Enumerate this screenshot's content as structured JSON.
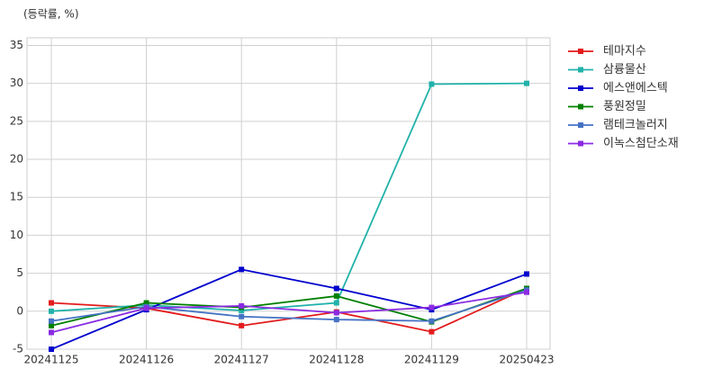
{
  "chart_data": {
    "type": "line",
    "y_label": "(등락률, %)",
    "categories": [
      "20241125",
      "20241126",
      "20241127",
      "20241128",
      "20241129",
      "20250423"
    ],
    "series": [
      {
        "name": "테마지수",
        "color": "#e31a1c",
        "values": [
          1.1,
          0.4,
          -1.9,
          -0.1,
          -2.7,
          3.0
        ]
      },
      {
        "name": "삼륭물산",
        "color": "#20b2aa",
        "values": [
          0.0,
          0.8,
          0.1,
          1.1,
          29.9,
          30.0
        ]
      },
      {
        "name": "에스앤에스텍",
        "color": "#0000cd",
        "values": [
          -5.0,
          0.2,
          5.5,
          3.0,
          0.2,
          4.9
        ]
      },
      {
        "name": "풍원정밀",
        "color": "#008000",
        "values": [
          -1.9,
          1.1,
          0.5,
          2.0,
          -1.4,
          3.0
        ]
      },
      {
        "name": "램테크놀러지",
        "color": "#4472c4",
        "values": [
          -1.3,
          0.6,
          -0.7,
          -1.1,
          -1.3,
          2.8
        ]
      },
      {
        "name": "이녹스첨단소재",
        "color": "#8a2be2",
        "values": [
          -2.8,
          0.4,
          0.7,
          -0.2,
          0.5,
          2.5
        ]
      }
    ],
    "ylim": [
      -5,
      36
    ],
    "yticks": [
      -5,
      0,
      5,
      10,
      15,
      20,
      25,
      30,
      35
    ],
    "grid": true,
    "legend": "outside-right"
  }
}
